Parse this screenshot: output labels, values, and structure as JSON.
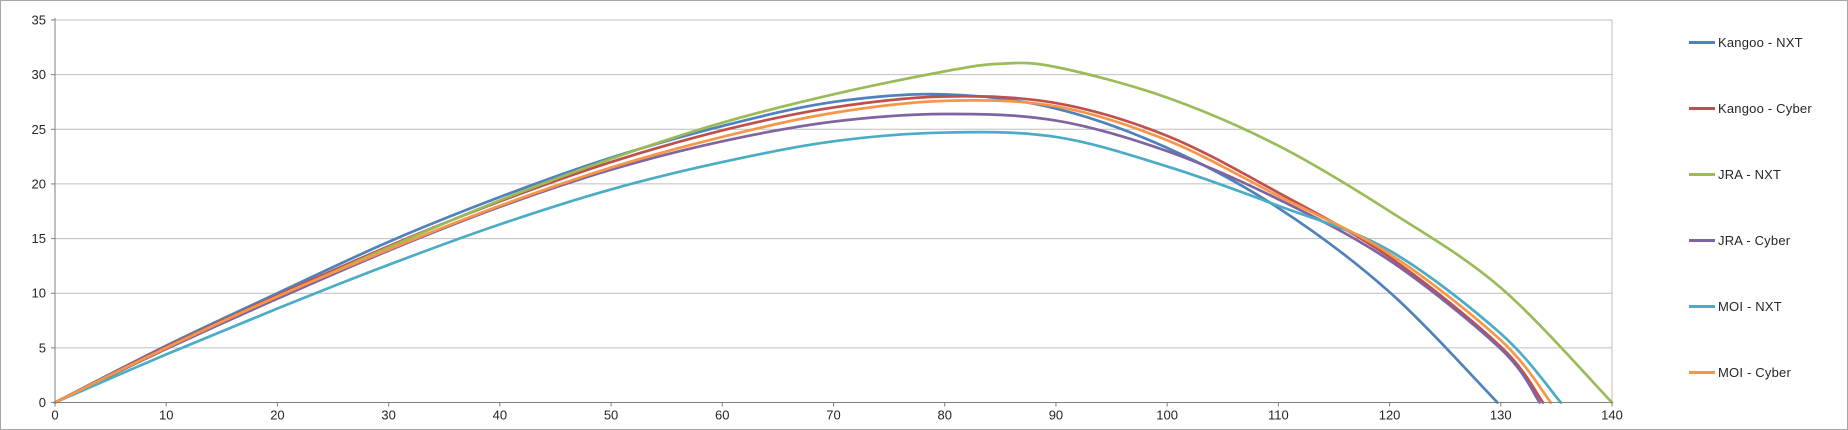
{
  "chart_data": {
    "type": "line",
    "title": "",
    "xlabel": "",
    "ylabel": "",
    "xlim": [
      0,
      140
    ],
    "ylim": [
      0,
      35
    ],
    "x_ticks": [
      0,
      10,
      20,
      30,
      40,
      50,
      60,
      70,
      80,
      90,
      100,
      110,
      120,
      130,
      140
    ],
    "y_ticks": [
      0,
      5,
      10,
      15,
      20,
      25,
      30,
      35
    ],
    "grid": "horizontal-only",
    "legend_position": "right",
    "gridline_color": "#bfbfbf",
    "axis_color": "#808080",
    "series": [
      {
        "name": "Kangoo - NXT",
        "color": "#4F81BD",
        "points": [
          [
            0,
            0
          ],
          [
            10,
            5.2
          ],
          [
            20,
            10.0
          ],
          [
            30,
            14.7
          ],
          [
            40,
            18.8
          ],
          [
            50,
            22.4
          ],
          [
            60,
            25.3
          ],
          [
            70,
            27.5
          ],
          [
            80,
            28.2
          ],
          [
            90,
            26.9
          ],
          [
            100,
            23.3
          ],
          [
            110,
            17.8
          ],
          [
            120,
            10.1
          ],
          [
            129.7,
            0
          ]
        ]
      },
      {
        "name": "Kangoo - Cyber",
        "color": "#C0504D",
        "points": [
          [
            0,
            0
          ],
          [
            10,
            5.1
          ],
          [
            20,
            9.8
          ],
          [
            30,
            14.3
          ],
          [
            40,
            18.4
          ],
          [
            50,
            22.0
          ],
          [
            60,
            24.9
          ],
          [
            70,
            27.0
          ],
          [
            80,
            28.0
          ],
          [
            90,
            27.4
          ],
          [
            100,
            24.4
          ],
          [
            110,
            19.2
          ],
          [
            120,
            13.3
          ],
          [
            130,
            5.1
          ],
          [
            133.8,
            0
          ]
        ]
      },
      {
        "name": "JRA - NXT",
        "color": "#9BBB59",
        "points": [
          [
            0,
            0
          ],
          [
            10,
            4.9
          ],
          [
            20,
            9.6
          ],
          [
            30,
            14.2
          ],
          [
            40,
            18.5
          ],
          [
            50,
            22.3
          ],
          [
            60,
            25.6
          ],
          [
            70,
            28.2
          ],
          [
            80,
            30.3
          ],
          [
            85,
            31.0
          ],
          [
            90,
            30.7
          ],
          [
            100,
            27.9
          ],
          [
            110,
            23.5
          ],
          [
            120,
            17.5
          ],
          [
            130,
            10.5
          ],
          [
            140,
            0
          ]
        ]
      },
      {
        "name": "JRA - Cyber",
        "color": "#8064A2",
        "points": [
          [
            0,
            0
          ],
          [
            10,
            4.9
          ],
          [
            20,
            9.5
          ],
          [
            30,
            13.9
          ],
          [
            40,
            17.9
          ],
          [
            50,
            21.3
          ],
          [
            60,
            23.9
          ],
          [
            70,
            25.7
          ],
          [
            80,
            26.4
          ],
          [
            90,
            25.8
          ],
          [
            100,
            23.0
          ],
          [
            110,
            18.6
          ],
          [
            120,
            13.0
          ],
          [
            130,
            4.9
          ],
          [
            133.5,
            0
          ]
        ]
      },
      {
        "name": "MOI - NXT",
        "color": "#4BACC6",
        "points": [
          [
            0,
            0
          ],
          [
            10,
            4.4
          ],
          [
            20,
            8.6
          ],
          [
            30,
            12.6
          ],
          [
            40,
            16.3
          ],
          [
            50,
            19.5
          ],
          [
            60,
            22.0
          ],
          [
            70,
            23.9
          ],
          [
            80,
            24.7
          ],
          [
            90,
            24.3
          ],
          [
            100,
            21.6
          ],
          [
            110,
            18.0
          ],
          [
            120,
            13.9
          ],
          [
            130,
            6.3
          ],
          [
            135.4,
            0
          ]
        ]
      },
      {
        "name": "MOI - Cyber",
        "color": "#F79646",
        "points": [
          [
            0,
            0
          ],
          [
            10,
            5.0
          ],
          [
            20,
            9.7
          ],
          [
            30,
            14.0
          ],
          [
            40,
            18.0
          ],
          [
            50,
            21.5
          ],
          [
            60,
            24.3
          ],
          [
            70,
            26.5
          ],
          [
            80,
            27.6
          ],
          [
            90,
            27.1
          ],
          [
            100,
            24.0
          ],
          [
            110,
            18.9
          ],
          [
            120,
            13.6
          ],
          [
            130,
            5.7
          ],
          [
            134.5,
            0
          ]
        ]
      }
    ]
  }
}
